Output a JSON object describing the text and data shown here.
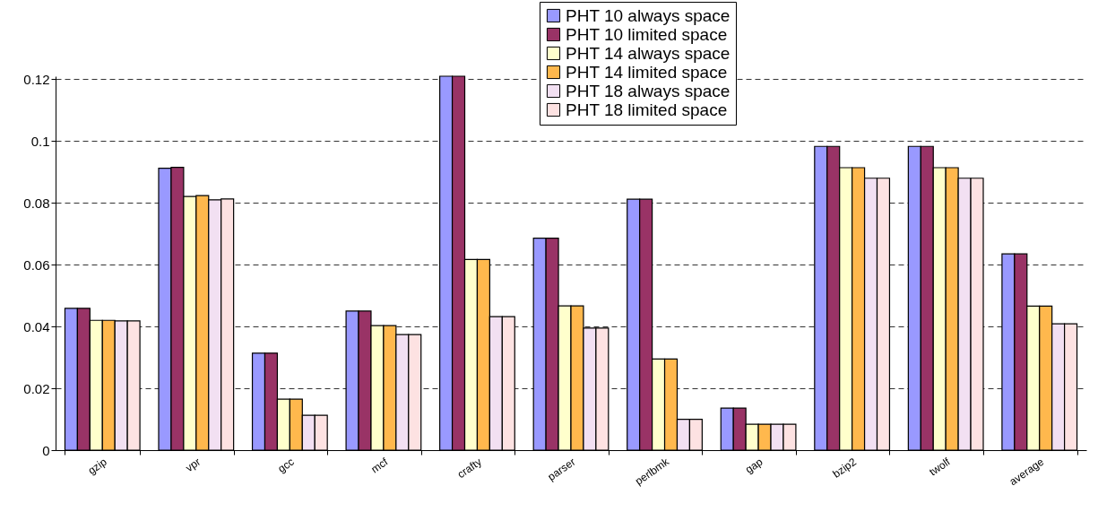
{
  "chart_data": {
    "type": "bar",
    "categories": [
      "gzip",
      "vpr",
      "gcc",
      "mcf",
      "crafty",
      "parser",
      "perlbmk",
      "gap",
      "bzip2",
      "twolf",
      "average"
    ],
    "series": [
      {
        "name": "PHT 10 always space",
        "color": "#9999ff",
        "values": [
          0.0459,
          0.0912,
          0.0314,
          0.045,
          0.121,
          0.0686,
          0.0812,
          0.0136,
          0.0983,
          0.0983,
          0.0635
        ]
      },
      {
        "name": "PHT 10 limited space",
        "color": "#993366",
        "values": [
          0.0459,
          0.0915,
          0.0314,
          0.045,
          0.121,
          0.0686,
          0.0812,
          0.0136,
          0.0983,
          0.0983,
          0.0635
        ]
      },
      {
        "name": "PHT 14 always space",
        "color": "#ffffcc",
        "values": [
          0.042,
          0.0821,
          0.0165,
          0.0403,
          0.0617,
          0.0467,
          0.0295,
          0.0084,
          0.0914,
          0.0914,
          0.0466
        ]
      },
      {
        "name": "PHT 14 limited space",
        "color": "#ffb84d",
        "values": [
          0.042,
          0.0824,
          0.0165,
          0.0403,
          0.0617,
          0.0467,
          0.0295,
          0.0084,
          0.0914,
          0.0914,
          0.0466
        ]
      },
      {
        "name": "PHT 18 always space",
        "color": "#f2e0f2",
        "values": [
          0.0418,
          0.081,
          0.0113,
          0.0374,
          0.0432,
          0.0395,
          0.01,
          0.0084,
          0.088,
          0.088,
          0.0409
        ]
      },
      {
        "name": "PHT 18 limited space",
        "color": "#fde2e2",
        "values": [
          0.0418,
          0.0813,
          0.0113,
          0.0374,
          0.0432,
          0.0395,
          0.01,
          0.0084,
          0.088,
          0.088,
          0.0409
        ]
      }
    ],
    "ylim": [
      0,
      0.121
    ],
    "yticks": [
      0,
      0.02,
      0.04,
      0.06,
      0.08,
      0.1,
      0.12
    ],
    "grid": "y",
    "legend": "top"
  }
}
